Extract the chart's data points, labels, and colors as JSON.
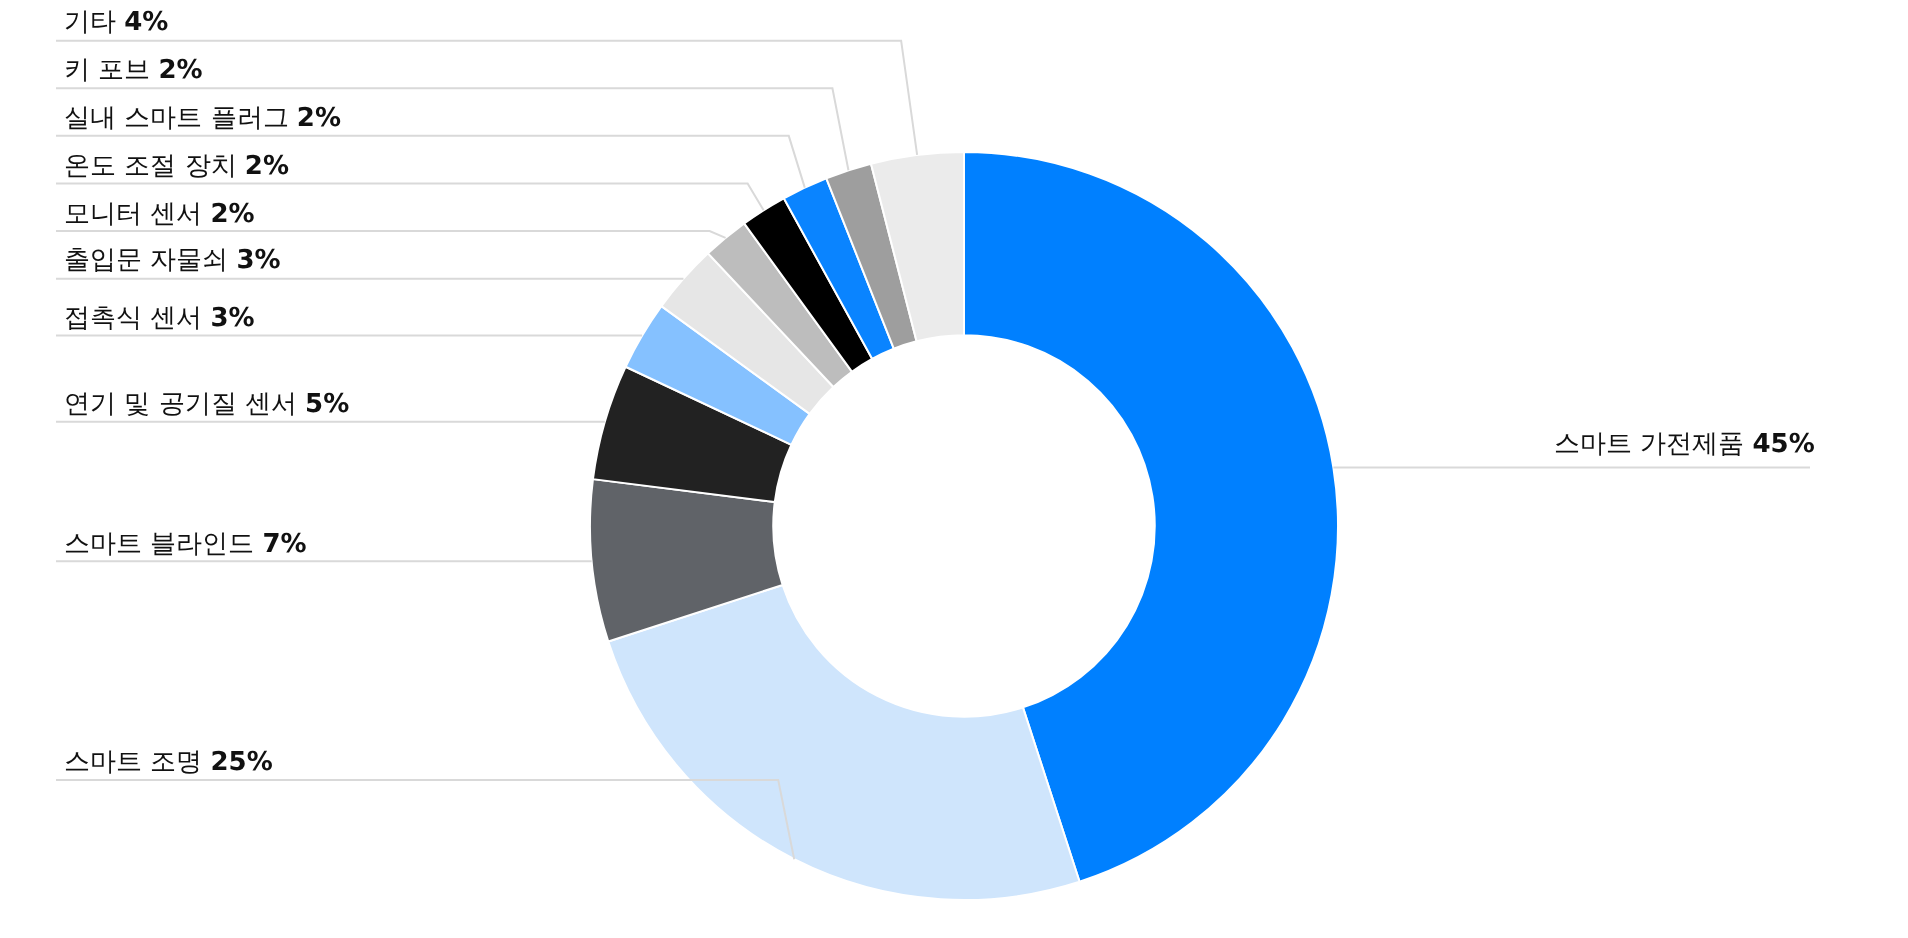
{
  "chart_data": {
    "type": "donut",
    "categories": [
      "스마트 가전제품",
      "스마트 조명",
      "스마트 블라인드",
      "연기 및 공기질 센서",
      "접촉식 센서",
      "출입문 자물쇠",
      "모니터 센서",
      "온도 조절 장치",
      "실내 스마트 플러그",
      "키 포브",
      "기타"
    ],
    "values": [
      45,
      25,
      7,
      5,
      3,
      3,
      2,
      2,
      2,
      2,
      4
    ],
    "value_labels": [
      "45%",
      "25%",
      "7%",
      "5%",
      "3%",
      "3%",
      "2%",
      "2%",
      "2%",
      "2%",
      "4%"
    ],
    "colors": [
      "#0080ff",
      "#cfe5fc",
      "#606368",
      "#222222",
      "#85c1ff",
      "#e6e6e6",
      "#bdbdbd",
      "#000000",
      "#0a84ff",
      "#9e9e9e",
      "#ebebeb"
    ]
  }
}
